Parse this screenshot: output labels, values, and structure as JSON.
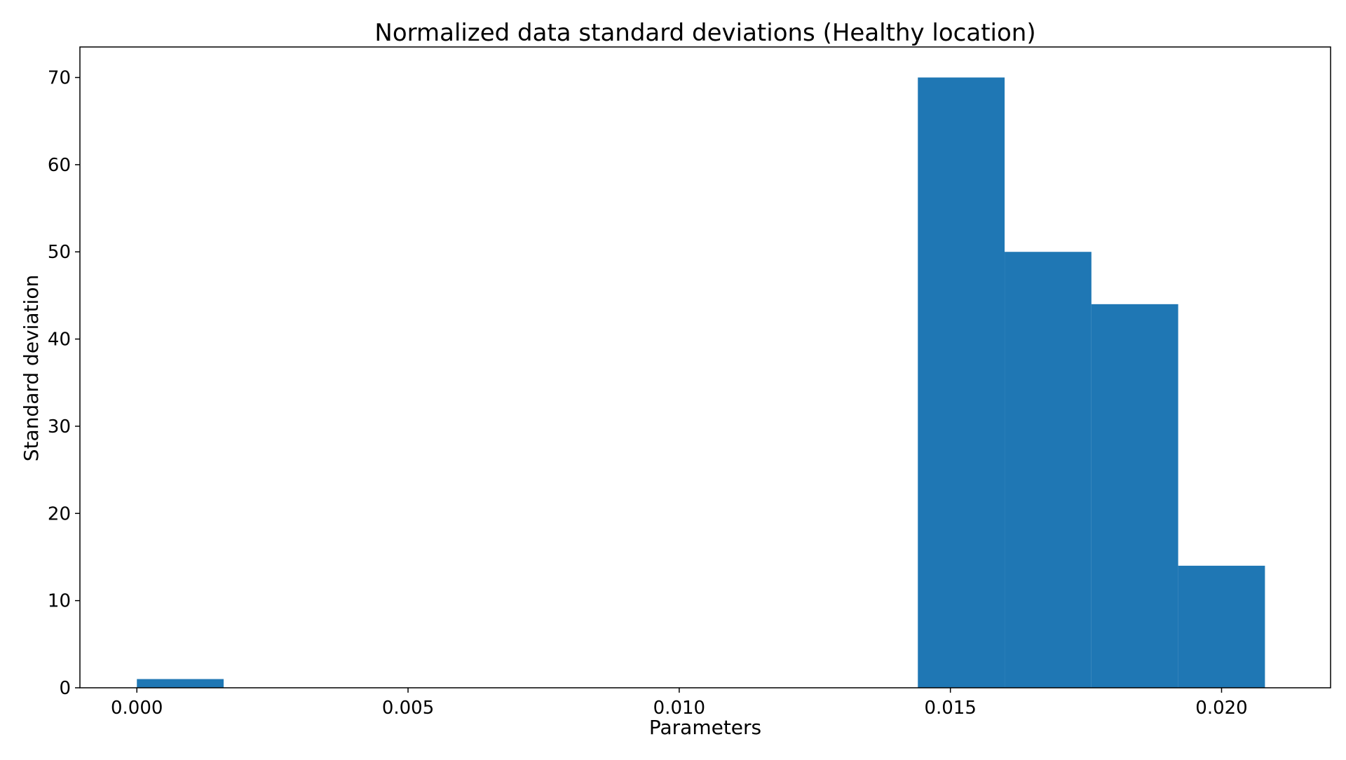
{
  "chart_data": {
    "type": "bar",
    "title": "Normalized data standard deviations (Healthy location)",
    "xlabel": "Parameters",
    "ylabel": "Standard deviation",
    "xlim": [
      -0.00105,
      0.02201
    ],
    "ylim": [
      0,
      73.5
    ],
    "xticks": [
      0.0,
      0.005,
      0.01,
      0.015,
      0.02
    ],
    "xtick_labels": [
      "0.000",
      "0.005",
      "0.010",
      "0.015",
      "0.020"
    ],
    "yticks": [
      0,
      10,
      20,
      30,
      40,
      50,
      60,
      70
    ],
    "ytick_labels": [
      "0",
      "10",
      "20",
      "30",
      "40",
      "50",
      "60",
      "70"
    ],
    "bins": [
      {
        "x0": 0.0,
        "x1": 0.0016,
        "value": 1
      },
      {
        "x0": 0.0144,
        "x1": 0.016,
        "value": 70
      },
      {
        "x0": 0.016,
        "x1": 0.0176,
        "value": 50
      },
      {
        "x0": 0.0176,
        "x1": 0.0192,
        "value": 44
      },
      {
        "x0": 0.0192,
        "x1": 0.0208,
        "value": 14
      }
    ],
    "bar_color": "#1f77b4",
    "grid": false,
    "legend": false
  }
}
